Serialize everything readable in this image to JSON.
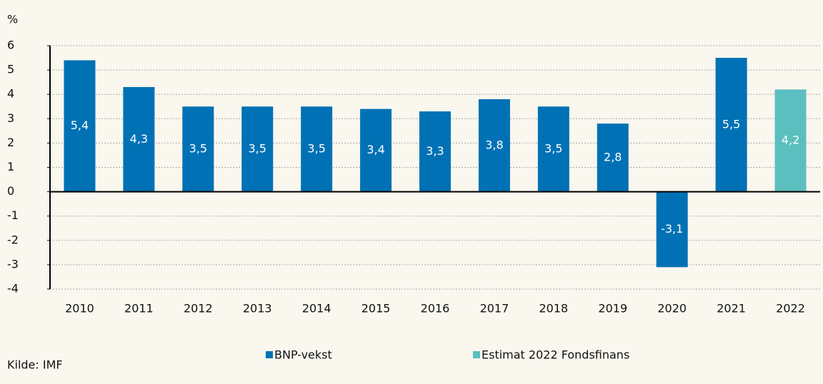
{
  "chart_data": {
    "type": "bar",
    "y_label": "%",
    "source": "Kilde: IMF",
    "categories": [
      "2010",
      "2011",
      "2012",
      "2013",
      "2014",
      "2015",
      "2016",
      "2017",
      "2018",
      "2019",
      "2020",
      "2021",
      "2022"
    ],
    "series": [
      {
        "name": "BNP-vekst",
        "color": "#0071b5",
        "values": [
          5.4,
          4.3,
          3.5,
          3.5,
          3.5,
          3.4,
          3.3,
          3.8,
          3.5,
          2.8,
          -3.1,
          5.5,
          null
        ],
        "value_labels": [
          "5,4",
          "4,3",
          "3,5",
          "3,5",
          "3,5",
          "3,4",
          "3,3",
          "3,8",
          "3,5",
          "2,8",
          "-3,1",
          "5,5",
          null
        ]
      },
      {
        "name": "Estimat 2022 Fondsfinans",
        "color": "#5bbfbf",
        "values": [
          null,
          null,
          null,
          null,
          null,
          null,
          null,
          null,
          null,
          null,
          null,
          null,
          4.2
        ],
        "value_labels": [
          null,
          null,
          null,
          null,
          null,
          null,
          null,
          null,
          null,
          null,
          null,
          null,
          "4,2"
        ]
      }
    ],
    "ylim": [
      -4,
      6
    ],
    "yticks": [
      -4,
      -3,
      -2,
      -1,
      0,
      1,
      2,
      3,
      4,
      5,
      6
    ],
    "grid": true
  }
}
